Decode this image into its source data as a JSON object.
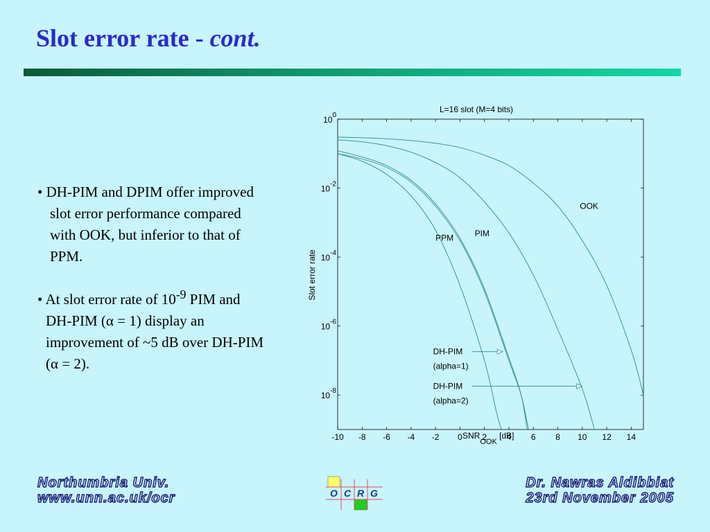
{
  "slide": {
    "title_main": "Slot error rate - ",
    "title_italic": "cont.",
    "bullet1": "• DH-PIM and DPIM offer improved slot error performance compared with OOK, but inferior to that of PPM.",
    "bullet2_pre": "• At slot error rate of 10",
    "bullet2_sup": "-9",
    "bullet2_post": " PIM and DH-PIM (α = 1) display an improvement of ~5 dB over DH-PIM (α = 2).",
    "footer_left_1": "Northumbria Univ.",
    "footer_left_2": "www.unn.ac.uk/ocr",
    "footer_right_1": "Dr. Nawras Aldibbiat",
    "footer_right_2": "23rd November 2005",
    "logo_letters": [
      "O",
      "C",
      "R",
      "G"
    ]
  },
  "colors": {
    "background": "#c8f4fc",
    "title": "#2a2ad0",
    "curve": "#2f8a8a",
    "logo_yellow": "#ffff66",
    "logo_green": "#22cc22",
    "logo_letters": "#1a3a8a"
  },
  "chart_data": {
    "type": "line",
    "title": "L=16 slot (M=4 bits)",
    "xlabel": "SNR",
    "xlabel_sub": "OOK",
    "xlabel_unit": " [dB]",
    "ylabel": "Slot error rate",
    "xlim": [
      -10,
      15
    ],
    "y_scale": "log",
    "ylim": [
      1e-09,
      1
    ],
    "x_ticks": [
      -10,
      -8,
      -6,
      -4,
      -2,
      0,
      2,
      4,
      6,
      8,
      10,
      12,
      14
    ],
    "y_ticks": [
      {
        "base": "10",
        "exp": "0",
        "value": 1
      },
      {
        "base": "10",
        "exp": "-2",
        "value": 0.01
      },
      {
        "base": "10",
        "exp": "-4",
        "value": 0.0001
      },
      {
        "base": "10",
        "exp": "-6",
        "value": 1e-06
      },
      {
        "base": "10",
        "exp": "-8",
        "value": 1e-08
      }
    ],
    "series": [
      {
        "name": "PPM",
        "x": [
          -10,
          -8,
          -6,
          -4,
          -2,
          0,
          2,
          3,
          3.4
        ],
        "y": [
          0.1,
          0.06,
          0.025,
          0.006,
          0.0006,
          1.5e-05,
          1e-07,
          3e-09,
          1e-09
        ]
      },
      {
        "name": "PIM",
        "x": [
          -10,
          -8,
          -6,
          -4,
          -2,
          0,
          2,
          4,
          5,
          5.6
        ],
        "y": [
          0.1,
          0.07,
          0.04,
          0.015,
          0.003,
          0.0003,
          1e-05,
          1e-07,
          1e-08,
          1e-09
        ]
      },
      {
        "name": "DH-PIM (alpha=1)",
        "x": [
          -10,
          -8,
          -6,
          -4,
          -2,
          0,
          2,
          4,
          5,
          5.5
        ],
        "y": [
          0.12,
          0.08,
          0.045,
          0.017,
          0.0035,
          0.00035,
          1.2e-05,
          1.2e-07,
          1e-08,
          1e-09
        ]
      },
      {
        "name": "DH-PIM (alpha=2)",
        "x": [
          -10,
          -8,
          -6,
          -4,
          -2,
          0,
          2,
          4,
          6,
          8,
          10,
          11
        ],
        "y": [
          0.25,
          0.22,
          0.17,
          0.11,
          0.055,
          0.02,
          0.004,
          0.0005,
          3e-05,
          8e-07,
          1.5e-08,
          1e-09
        ]
      },
      {
        "name": "OOK",
        "x": [
          -10,
          -8,
          -6,
          -4,
          -2,
          0,
          2,
          4,
          6,
          8,
          10,
          12,
          14,
          15
        ],
        "y": [
          0.3,
          0.29,
          0.27,
          0.24,
          0.2,
          0.15,
          0.09,
          0.045,
          0.014,
          0.003,
          0.0003,
          1.5e-05,
          2e-07,
          1e-08
        ]
      }
    ],
    "annotations": [
      {
        "text": "PPM",
        "x": -2,
        "y": 0.0003
      },
      {
        "text": "PIM",
        "x": 1.2,
        "y": 0.0004
      },
      {
        "text": "OOK",
        "x": 9.8,
        "y": 0.0025
      },
      {
        "text": "DH-PIM",
        "text2": "(alpha=1)",
        "x": -2.2,
        "y": 1.5e-07,
        "arrow_to_x": 3.5
      },
      {
        "text": "DH-PIM",
        "text2": "(alpha=2)",
        "x": -2.2,
        "y": 1.5e-08,
        "arrow_to_x": 10
      }
    ]
  }
}
